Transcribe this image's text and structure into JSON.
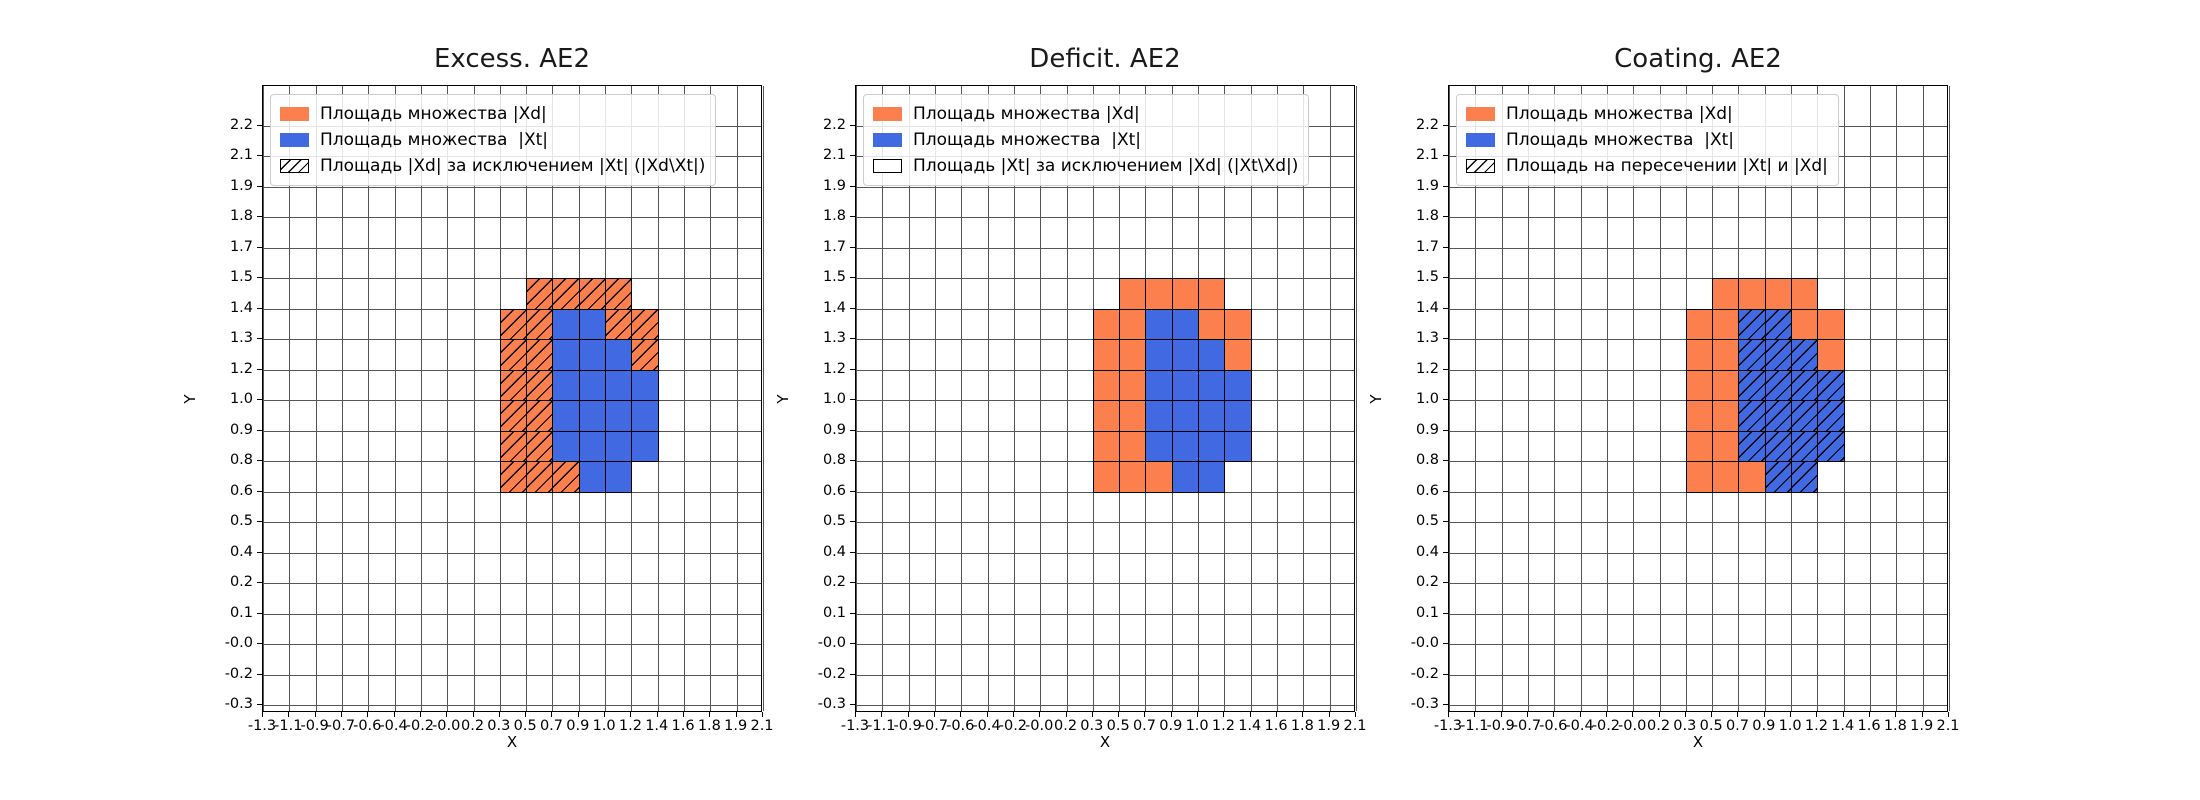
{
  "chart_data": {
    "type": "heatmap",
    "grid": true,
    "legend_position": "upper-left",
    "xlabel": "X",
    "ylabel": "Y",
    "x_tick_labels": [
      "-1.3",
      "-1.1",
      "-0.9",
      "-0.7",
      "-0.6",
      "-0.4",
      "-0.2",
      "-0.0",
      "0.2",
      "0.3",
      "0.5",
      "0.7",
      "0.9",
      "1.0",
      "1.2",
      "1.4",
      "1.6",
      "1.8",
      "1.9",
      "2.1"
    ],
    "y_tick_labels": [
      "2.2",
      "2.1",
      "1.9",
      "1.8",
      "1.7",
      "1.5",
      "1.4",
      "1.3",
      "1.2",
      "1.0",
      "0.9",
      "0.8",
      "0.6",
      "0.5",
      "0.4",
      "0.2",
      "0.1",
      "-0.0",
      "-0.2",
      "-0.3"
    ],
    "colors": {
      "xd": "#fc7f4e",
      "xt": "#4169e1"
    },
    "cells": {
      "grid_cols": 19,
      "grid_rows": 19,
      "xd_only_row_col": [
        [
          5,
          10
        ],
        [
          5,
          11
        ],
        [
          5,
          12
        ],
        [
          5,
          13
        ],
        [
          6,
          9
        ],
        [
          6,
          10
        ],
        [
          6,
          13
        ],
        [
          6,
          14
        ],
        [
          7,
          9
        ],
        [
          7,
          10
        ],
        [
          7,
          14
        ],
        [
          8,
          9
        ],
        [
          8,
          10
        ],
        [
          9,
          9
        ],
        [
          9,
          10
        ],
        [
          10,
          9
        ],
        [
          10,
          10
        ],
        [
          11,
          9
        ],
        [
          11,
          10
        ],
        [
          11,
          11
        ]
      ],
      "xt_row_col": [
        [
          6,
          11
        ],
        [
          6,
          12
        ],
        [
          7,
          11
        ],
        [
          7,
          12
        ],
        [
          7,
          13
        ],
        [
          8,
          11
        ],
        [
          8,
          12
        ],
        [
          8,
          13
        ],
        [
          8,
          14
        ],
        [
          9,
          11
        ],
        [
          9,
          12
        ],
        [
          9,
          13
        ],
        [
          9,
          14
        ],
        [
          10,
          11
        ],
        [
          10,
          12
        ],
        [
          10,
          13
        ],
        [
          10,
          14
        ],
        [
          11,
          12
        ],
        [
          11,
          13
        ]
      ]
    },
    "subplots": [
      {
        "title": "Excess. AE2",
        "hatched_region": "xd_only",
        "legend": [
          {
            "swatch": "xd",
            "label": "Площадь множества |Xd|"
          },
          {
            "swatch": "xt",
            "label": "Площадь множества  |Xt|"
          },
          {
            "swatch": "hatch",
            "label": "Площадь |Xd| за исключением |Xt| (|Xd\\Xt|)"
          }
        ]
      },
      {
        "title": "Deficit. AE2",
        "hatched_region": "none",
        "legend": [
          {
            "swatch": "xd",
            "label": "Площадь множества |Xd|"
          },
          {
            "swatch": "xt",
            "label": "Площадь множества  |Xt|"
          },
          {
            "swatch": "empty",
            "label": "Площадь |Xt| за исключением |Xd| (|Xt\\Xd|)"
          }
        ]
      },
      {
        "title": "Coating. AE2",
        "hatched_region": "xt",
        "legend": [
          {
            "swatch": "xd",
            "label": "Площадь множества |Xd|"
          },
          {
            "swatch": "xt",
            "label": "Площадь множества  |Xt|"
          },
          {
            "swatch": "hatch",
            "label": "Площадь на пересечении |Xt| и |Xd|"
          }
        ]
      }
    ]
  }
}
